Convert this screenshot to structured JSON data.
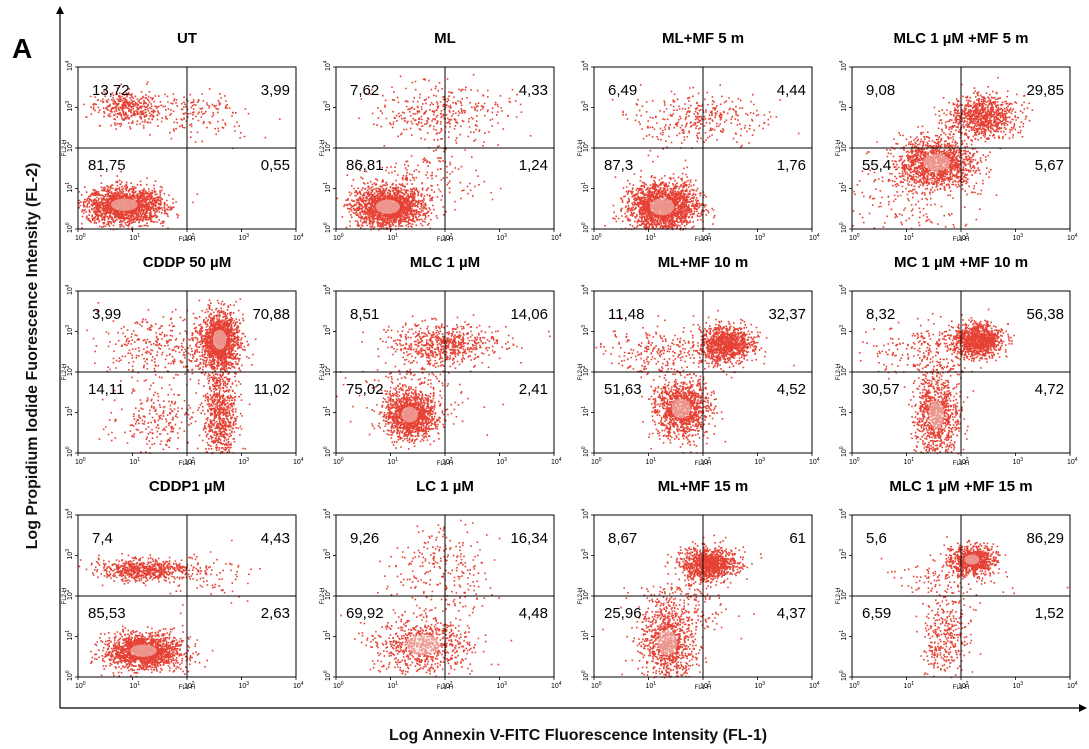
{
  "figure": {
    "panel_letter": "A",
    "x_axis_label": "Log Annexin V-FITC Fluorescence Intensity (FL-1)",
    "y_axis_label": "Log Propidium Iodide Fuorescence Intensity (FL-2)"
  },
  "chart_data": {
    "type": "scatter",
    "layout": "3x4 grid of flow-cytometry quadrant dot plots",
    "x_axis": {
      "label": "FL1-H",
      "scale": "log",
      "range": [
        1,
        10000
      ],
      "ticks": [
        "10^0",
        "10^1",
        "10^2",
        "10^3",
        "10^4"
      ]
    },
    "y_axis": {
      "label": "FL2-H",
      "scale": "log",
      "range": [
        1,
        10000
      ],
      "ticks": [
        "10^0",
        "10^1",
        "10^2",
        "10^3",
        "10^4"
      ]
    },
    "quadrant_gate": {
      "x": 100,
      "y": 100
    },
    "point_color": "#e02010",
    "panels": [
      {
        "title": "UT",
        "upper_left": "13,72",
        "upper_right": "3,99",
        "lower_left": "81,75",
        "lower_right": "0,55"
      },
      {
        "title": "ML",
        "upper_left": "7,62",
        "upper_right": "4,33",
        "lower_left": "86,81",
        "lower_right": "1,24"
      },
      {
        "title": "ML+MF  5 m",
        "upper_left": "6,49",
        "upper_right": "4,44",
        "lower_left": "87,3",
        "lower_right": "1,76"
      },
      {
        "title": "MLC 1 µM +MF 5 m",
        "upper_left": "9,08",
        "upper_right": "29,85",
        "lower_left": "55,4",
        "lower_right": "5,67"
      },
      {
        "title": "CDDP 50 µM",
        "upper_left": "3,99",
        "upper_right": "70,88",
        "lower_left": "14,11",
        "lower_right": "11,02"
      },
      {
        "title": "MLC 1 µM",
        "upper_left": "8,51",
        "upper_right": "14,06",
        "lower_left": "75,02",
        "lower_right": "2,41"
      },
      {
        "title": "ML+MF  10 m",
        "upper_left": "11,48",
        "upper_right": "32,37",
        "lower_left": "51,63",
        "lower_right": "4,52"
      },
      {
        "title": "MC 1 µM +MF 10 m",
        "upper_left": "8,32",
        "upper_right": "56,38",
        "lower_left": "30,57",
        "lower_right": "4,72"
      },
      {
        "title": "CDDP1 µM",
        "upper_left": "7,4",
        "upper_right": "4,43",
        "lower_left": "85,53",
        "lower_right": "2,63"
      },
      {
        "title": "LC 1 µM",
        "upper_left": "9,26",
        "upper_right": "16,34",
        "lower_left": "69,92",
        "lower_right": "4,48"
      },
      {
        "title": "ML+MF  15 m",
        "upper_left": "8,67",
        "upper_right": "61",
        "lower_left": "25,96",
        "lower_right": "4,37"
      },
      {
        "title": "MLC 1 µM +MF 15 m",
        "upper_left": "5,6",
        "upper_right": "86,29",
        "lower_left": "6,59",
        "lower_right": "1,52"
      }
    ]
  }
}
